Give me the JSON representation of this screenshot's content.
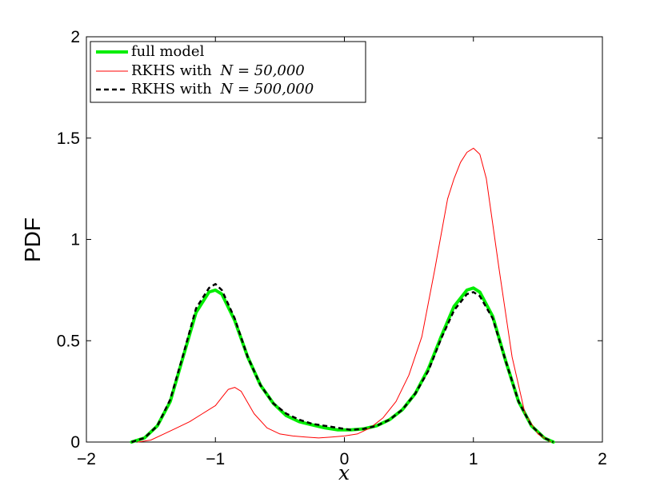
{
  "chart_data": {
    "type": "line",
    "xlabel": "x",
    "ylabel": "PDF",
    "xlim": [
      -2,
      2
    ],
    "ylim": [
      0,
      2
    ],
    "xticks": [
      -2,
      -1,
      0,
      1,
      2
    ],
    "yticks": [
      0,
      0.5,
      1,
      1.5,
      2
    ],
    "xtick_labels": [
      "−2",
      "−1",
      "0",
      "1",
      "2"
    ],
    "ytick_labels": [
      "0",
      "0.5",
      "1",
      "1.5",
      "2"
    ],
    "grid": false,
    "legend_position": "top-left",
    "series": [
      {
        "name": "full model",
        "color": "#00ee00",
        "style": "solid-thick",
        "x": [
          -1.65,
          -1.55,
          -1.45,
          -1.35,
          -1.25,
          -1.15,
          -1.05,
          -1.0,
          -0.95,
          -0.85,
          -0.75,
          -0.65,
          -0.55,
          -0.45,
          -0.35,
          -0.25,
          -0.15,
          -0.05,
          0.05,
          0.15,
          0.25,
          0.35,
          0.45,
          0.55,
          0.65,
          0.75,
          0.85,
          0.95,
          1.0,
          1.05,
          1.15,
          1.25,
          1.35,
          1.45,
          1.55,
          1.62
        ],
        "y": [
          0.0,
          0.02,
          0.08,
          0.2,
          0.42,
          0.64,
          0.74,
          0.75,
          0.73,
          0.6,
          0.42,
          0.28,
          0.19,
          0.13,
          0.1,
          0.085,
          0.07,
          0.06,
          0.06,
          0.065,
          0.08,
          0.11,
          0.16,
          0.24,
          0.36,
          0.52,
          0.67,
          0.75,
          0.76,
          0.74,
          0.62,
          0.4,
          0.2,
          0.08,
          0.02,
          0.0
        ]
      },
      {
        "name": "RKHS with",
        "name_math": "N = 50,000",
        "color": "#ff0000",
        "style": "solid-thin",
        "x": [
          -1.6,
          -1.5,
          -1.4,
          -1.3,
          -1.2,
          -1.1,
          -1.0,
          -0.95,
          -0.9,
          -0.85,
          -0.8,
          -0.7,
          -0.6,
          -0.5,
          -0.4,
          -0.3,
          -0.2,
          -0.1,
          0.0,
          0.1,
          0.2,
          0.3,
          0.4,
          0.5,
          0.6,
          0.7,
          0.8,
          0.85,
          0.9,
          0.95,
          1.0,
          1.05,
          1.1,
          1.2,
          1.3,
          1.4,
          1.5,
          1.6
        ],
        "y": [
          0.0,
          0.01,
          0.04,
          0.07,
          0.1,
          0.14,
          0.18,
          0.22,
          0.26,
          0.27,
          0.25,
          0.14,
          0.07,
          0.04,
          0.03,
          0.025,
          0.02,
          0.025,
          0.03,
          0.04,
          0.07,
          0.12,
          0.2,
          0.33,
          0.52,
          0.85,
          1.2,
          1.3,
          1.38,
          1.43,
          1.45,
          1.42,
          1.3,
          0.85,
          0.42,
          0.14,
          0.04,
          0.0
        ]
      },
      {
        "name": "RKHS with",
        "name_math": "N = 500,000",
        "color": "#000000",
        "style": "dashed",
        "x": [
          -1.65,
          -1.55,
          -1.45,
          -1.35,
          -1.25,
          -1.15,
          -1.05,
          -1.0,
          -0.95,
          -0.85,
          -0.75,
          -0.65,
          -0.55,
          -0.45,
          -0.35,
          -0.25,
          -0.15,
          -0.05,
          0.05,
          0.15,
          0.25,
          0.35,
          0.45,
          0.55,
          0.65,
          0.75,
          0.85,
          0.95,
          1.0,
          1.05,
          1.15,
          1.25,
          1.35,
          1.45,
          1.55,
          1.62
        ],
        "y": [
          0.0,
          0.02,
          0.08,
          0.21,
          0.43,
          0.66,
          0.76,
          0.78,
          0.75,
          0.61,
          0.42,
          0.28,
          0.19,
          0.14,
          0.11,
          0.09,
          0.08,
          0.07,
          0.06,
          0.065,
          0.08,
          0.11,
          0.16,
          0.24,
          0.35,
          0.51,
          0.65,
          0.73,
          0.74,
          0.72,
          0.61,
          0.4,
          0.2,
          0.08,
          0.02,
          0.0
        ]
      }
    ]
  }
}
